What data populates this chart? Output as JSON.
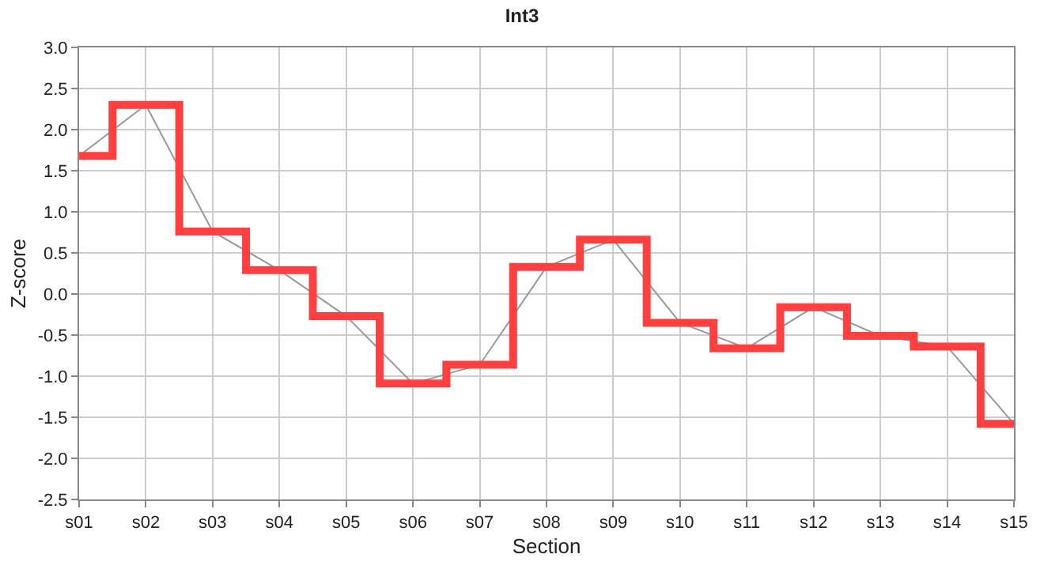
{
  "chart_data": {
    "type": "line",
    "title": "Int3",
    "xlabel": "Section",
    "ylabel": "Z-score",
    "categories": [
      "s01",
      "s02",
      "s03",
      "s04",
      "s05",
      "s06",
      "s07",
      "s08",
      "s09",
      "s10",
      "s11",
      "s12",
      "s13",
      "s14",
      "s15"
    ],
    "series": [
      {
        "color": "#999999",
        "values": [
          1.68,
          2.3,
          0.76,
          0.29,
          -0.27,
          -1.09,
          -0.86,
          0.33,
          0.66,
          -0.35,
          -0.66,
          -0.16,
          -0.51,
          -0.64,
          -1.58
        ]
      },
      {
        "type": "step",
        "color": "#ff4040",
        "values": [
          1.68,
          2.3,
          0.76,
          0.29,
          -0.27,
          -1.09,
          -0.86,
          0.33,
          0.66,
          -0.35,
          -0.66,
          -0.16,
          -0.51,
          -0.64,
          -1.58
        ]
      }
    ],
    "ylim": [
      -2.5,
      3.0
    ],
    "yticks": [
      {
        "value": -2.5,
        "label": "-2.5"
      },
      {
        "value": -2,
        "label": "-2.0"
      },
      {
        "value": -1.5,
        "label": "-1.5"
      },
      {
        "value": -1,
        "label": "-1.0"
      },
      {
        "value": -0.5,
        "label": "-0.5"
      },
      {
        "value": 0,
        "label": "0.0"
      },
      {
        "value": 0.5,
        "label": "0.5"
      },
      {
        "value": 1,
        "label": "1.0"
      },
      {
        "value": 1.5,
        "label": "1.5"
      },
      {
        "value": 2,
        "label": "2.0"
      },
      {
        "value": 2.5,
        "label": "2.5"
      },
      {
        "value": 3,
        "label": "3.0"
      }
    ],
    "grid": true
  }
}
